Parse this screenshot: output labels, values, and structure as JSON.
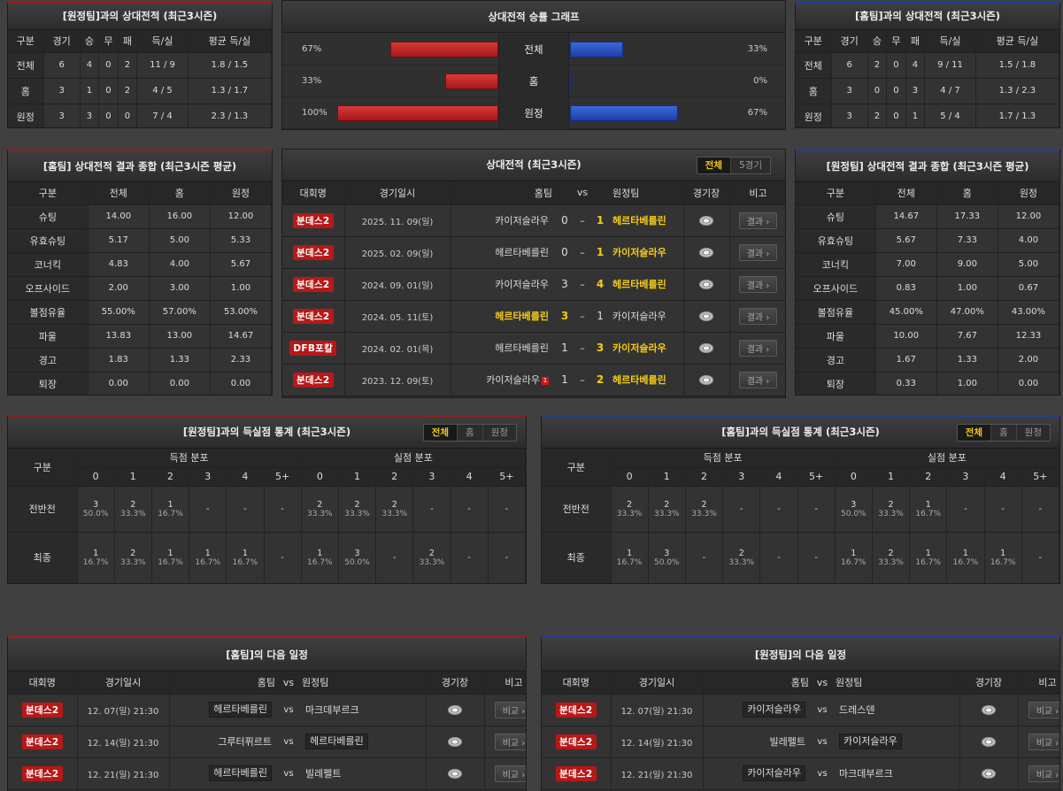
{
  "h2h_away": {
    "title": "[원정팀]과의 상대전적 (최근3시즌)",
    "headers": [
      "구분",
      "경기",
      "승",
      "무",
      "패",
      "득/실",
      "평균 득/실"
    ],
    "rows": [
      [
        "전체",
        "6",
        "4",
        "0",
        "2",
        "11 / 9",
        "1.8 / 1.5"
      ],
      [
        "홈",
        "3",
        "1",
        "0",
        "2",
        "4 / 5",
        "1.3 / 1.7"
      ],
      [
        "원정",
        "3",
        "3",
        "0",
        "0",
        "7 / 4",
        "2.3 / 1.3"
      ]
    ]
  },
  "h2h_home": {
    "title": "[홈팀]과의 상대전적 (최근3시즌)",
    "headers": [
      "구분",
      "경기",
      "승",
      "무",
      "패",
      "득/실",
      "평균 득/실"
    ],
    "rows": [
      [
        "전체",
        "6",
        "2",
        "0",
        "4",
        "9 / 11",
        "1.5 / 1.8"
      ],
      [
        "홈",
        "3",
        "0",
        "0",
        "3",
        "4 / 7",
        "1.3 / 2.3"
      ],
      [
        "원정",
        "3",
        "2",
        "0",
        "1",
        "5 / 4",
        "1.7 / 1.3"
      ]
    ]
  },
  "graph": {
    "title": "상대전적 승률 그래프",
    "rows": [
      {
        "label": "전체",
        "left": "67%",
        "right": "33%",
        "left_val": 0.67,
        "right_val": 0.33
      },
      {
        "label": "홈",
        "left": "33%",
        "right": "0%",
        "left_val": 0.33,
        "right_val": 0
      },
      {
        "label": "원정",
        "left": "100%",
        "right": "67%",
        "left_val": 1.0,
        "right_val": 0.67
      }
    ],
    "colors": {
      "home": "#b71c1c",
      "away": "#1d43b3"
    }
  },
  "home_summary": {
    "title": "[홈팀] 상대전적 결과 종합 (최근3시즌 평균)",
    "headers": [
      "구분",
      "전체",
      "홈",
      "원정"
    ],
    "rows": [
      [
        "슈팅",
        "14.00",
        "16.00",
        "12.00"
      ],
      [
        "유효슈팅",
        "5.17",
        "5.00",
        "5.33"
      ],
      [
        "코너킥",
        "4.83",
        "4.00",
        "5.67"
      ],
      [
        "오프사이드",
        "2.00",
        "3.00",
        "1.00"
      ],
      [
        "볼점유율",
        "55.00%",
        "57.00%",
        "53.00%"
      ],
      [
        "파울",
        "13.83",
        "13.00",
        "14.67"
      ],
      [
        "경고",
        "1.83",
        "1.33",
        "2.33"
      ],
      [
        "퇴장",
        "0.00",
        "0.00",
        "0.00"
      ]
    ]
  },
  "away_summary": {
    "title": "[원정팀] 상대전적 결과 종합 (최근3시즌 평균)",
    "headers": [
      "구분",
      "전체",
      "홈",
      "원정"
    ],
    "rows": [
      [
        "슈팅",
        "14.67",
        "17.33",
        "12.00"
      ],
      [
        "유효슈팅",
        "5.67",
        "7.33",
        "4.00"
      ],
      [
        "코너킥",
        "7.00",
        "9.00",
        "5.00"
      ],
      [
        "오프사이드",
        "0.83",
        "1.00",
        "0.67"
      ],
      [
        "볼점유율",
        "45.00%",
        "47.00%",
        "43.00%"
      ],
      [
        "파울",
        "10.00",
        "7.67",
        "12.33"
      ],
      [
        "경고",
        "1.67",
        "1.33",
        "2.00"
      ],
      [
        "퇴장",
        "0.33",
        "1.00",
        "0.00"
      ]
    ]
  },
  "h2h_matches": {
    "title": "상대전적 (최근3시즌)",
    "toggle": [
      "전체",
      "5경기"
    ],
    "headers": {
      "league": "대회명",
      "date": "경기일시",
      "home": "홈팀",
      "vs": "vs",
      "away": "원정팀",
      "stadium": "경기장",
      "note": "비고"
    },
    "button": "결과",
    "rows": [
      {
        "league": "분데스2",
        "date": "2025. 11. 09(일)",
        "home": "카이저슬라우",
        "hs": "0",
        "as": "1",
        "away": "헤르타베를린",
        "winner": "away",
        "card": ""
      },
      {
        "league": "분데스2",
        "date": "2025. 02. 09(일)",
        "home": "헤르타베를린",
        "hs": "0",
        "as": "1",
        "away": "카이저슬라우",
        "winner": "away",
        "card": ""
      },
      {
        "league": "분데스2",
        "date": "2024. 09. 01(일)",
        "home": "카이저슬라우",
        "hs": "3",
        "as": "4",
        "away": "헤르타베를린",
        "winner": "away",
        "card": ""
      },
      {
        "league": "분데스2",
        "date": "2024. 05. 11(토)",
        "home": "헤르타베를린",
        "hs": "3",
        "as": "1",
        "away": "카이저슬라우",
        "winner": "home",
        "card": ""
      },
      {
        "league": "DFB포칼",
        "date": "2024. 02. 01(목)",
        "home": "헤르타베를린",
        "hs": "1",
        "as": "3",
        "away": "카이저슬라우",
        "winner": "away",
        "card": ""
      },
      {
        "league": "분데스2",
        "date": "2023. 12. 09(토)",
        "home": "카이저슬라우",
        "hs": "1",
        "as": "2",
        "away": "헤르타베를린",
        "winner": "away",
        "card": "1"
      }
    ]
  },
  "goals_away": {
    "title": "[원정팀]과의 득실점 통계 (최근3시즌)",
    "toggle": [
      "전체",
      "홈",
      "원정"
    ],
    "label": "구분",
    "scored": "득점 분포",
    "conceded": "실점 분포",
    "cols": [
      "0",
      "1",
      "2",
      "3",
      "4",
      "5+"
    ],
    "rows": [
      {
        "label": "전반전",
        "scored": [
          [
            "3",
            "50.0%"
          ],
          [
            "2",
            "33.3%"
          ],
          [
            "1",
            "16.7%"
          ],
          [
            "-",
            ""
          ],
          [
            "-",
            ""
          ],
          [
            "-",
            ""
          ]
        ],
        "conceded": [
          [
            "2",
            "33.3%"
          ],
          [
            "2",
            "33.3%"
          ],
          [
            "2",
            "33.3%"
          ],
          [
            "-",
            ""
          ],
          [
            "-",
            ""
          ],
          [
            "-",
            ""
          ]
        ]
      },
      {
        "label": "최종",
        "scored": [
          [
            "1",
            "16.7%"
          ],
          [
            "2",
            "33.3%"
          ],
          [
            "1",
            "16.7%"
          ],
          [
            "1",
            "16.7%"
          ],
          [
            "1",
            "16.7%"
          ],
          [
            "-",
            ""
          ]
        ],
        "conceded": [
          [
            "1",
            "16.7%"
          ],
          [
            "3",
            "50.0%"
          ],
          [
            "-",
            ""
          ],
          [
            "2",
            "33.3%"
          ],
          [
            "-",
            ""
          ],
          [
            "-",
            ""
          ]
        ]
      }
    ]
  },
  "goals_home": {
    "title": "[홈팀]과의 득실점 통계 (최근3시즌)",
    "toggle": [
      "전체",
      "홈",
      "원정"
    ],
    "label": "구분",
    "scored": "득점 분포",
    "conceded": "실점 분포",
    "cols": [
      "0",
      "1",
      "2",
      "3",
      "4",
      "5+"
    ],
    "rows": [
      {
        "label": "전반전",
        "scored": [
          [
            "2",
            "33.3%"
          ],
          [
            "2",
            "33.3%"
          ],
          [
            "2",
            "33.3%"
          ],
          [
            "-",
            ""
          ],
          [
            "-",
            ""
          ],
          [
            "-",
            ""
          ]
        ],
        "conceded": [
          [
            "3",
            "50.0%"
          ],
          [
            "2",
            "33.3%"
          ],
          [
            "1",
            "16.7%"
          ],
          [
            "-",
            ""
          ],
          [
            "-",
            ""
          ],
          [
            "-",
            ""
          ]
        ]
      },
      {
        "label": "최종",
        "scored": [
          [
            "1",
            "16.7%"
          ],
          [
            "3",
            "50.0%"
          ],
          [
            "-",
            ""
          ],
          [
            "2",
            "33.3%"
          ],
          [
            "-",
            ""
          ],
          [
            "-",
            ""
          ]
        ],
        "conceded": [
          [
            "1",
            "16.7%"
          ],
          [
            "2",
            "33.3%"
          ],
          [
            "1",
            "16.7%"
          ],
          [
            "1",
            "16.7%"
          ],
          [
            "1",
            "16.7%"
          ],
          [
            "-",
            ""
          ]
        ]
      }
    ]
  },
  "next_home": {
    "title": "[홈팀]의 다음 일정",
    "headers": {
      "league": "대회명",
      "date": "경기일시",
      "home": "홈팀",
      "vs": "vs",
      "away": "원정팀",
      "stadium": "경기장",
      "note": "비고"
    },
    "button": "비교",
    "rows": [
      {
        "league": "분데스2",
        "date": "12. 07(일) 21:30",
        "home": "헤르타베를린",
        "away": "마크데부르크",
        "hl": "home"
      },
      {
        "league": "분데스2",
        "date": "12. 14(일) 21:30",
        "home": "그루터퓌르트",
        "away": "헤르타베를린",
        "hl": "away"
      },
      {
        "league": "분데스2",
        "date": "12. 21(일) 21:30",
        "home": "헤르타베를린",
        "away": "빌레펠트",
        "hl": "home"
      }
    ]
  },
  "next_away": {
    "title": "[원정팀]의 다음 일정",
    "headers": {
      "league": "대회명",
      "date": "경기일시",
      "home": "홈팀",
      "vs": "vs",
      "away": "원정팀",
      "stadium": "경기장",
      "note": "비고"
    },
    "button": "비교",
    "rows": [
      {
        "league": "분데스2",
        "date": "12. 07(일) 21:30",
        "home": "카이저슬라우",
        "away": "드레스덴",
        "hl": "home"
      },
      {
        "league": "분데스2",
        "date": "12. 14(일) 21:30",
        "home": "빌레펠트",
        "away": "카이저슬라우",
        "hl": "away"
      },
      {
        "league": "분데스2",
        "date": "12. 21(일) 21:30",
        "home": "카이저슬라우",
        "away": "마크데부르크",
        "hl": "home"
      }
    ]
  }
}
